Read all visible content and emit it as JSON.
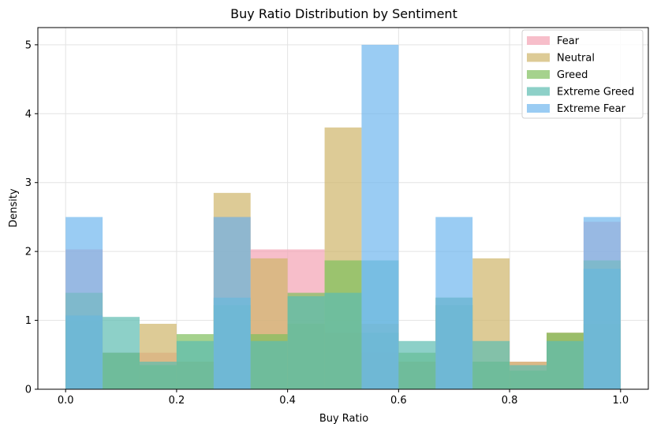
{
  "chart_data": {
    "type": "bar",
    "subtype": "histogram-density-overlay",
    "title": "Buy Ratio Distribution by Sentiment",
    "xlabel": "Buy Ratio",
    "ylabel": "Density",
    "xlim": [
      -0.05,
      1.05
    ],
    "ylim": [
      0,
      5.25
    ],
    "xticks": [
      0.0,
      0.2,
      0.4,
      0.6,
      0.8,
      1.0
    ],
    "xtick_labels": [
      "0.0",
      "0.2",
      "0.4",
      "0.6",
      "0.8",
      "1.0"
    ],
    "yticks": [
      0,
      1,
      2,
      3,
      4,
      5
    ],
    "ytick_labels": [
      "0",
      "1",
      "2",
      "3",
      "4",
      "5"
    ],
    "grid": true,
    "legend_position": "top-right",
    "bin_edges": [
      0.0,
      0.0667,
      0.1333,
      0.2,
      0.2667,
      0.3333,
      0.4,
      0.4667,
      0.5333,
      0.6,
      0.6667,
      0.7333,
      0.8,
      0.8667,
      0.9333,
      1.0
    ],
    "series": [
      {
        "name": "Fear",
        "color": "#f4a3b4",
        "values": [
          2.03,
          0.53,
          0.53,
          0.4,
          2.5,
          2.03,
          2.03,
          0.82,
          0.53,
          0.4,
          1.22,
          0.4,
          0.4,
          0.82,
          2.43
        ]
      },
      {
        "name": "Neutral",
        "color": "#cfb56a",
        "values": [
          1.0,
          0.53,
          0.95,
          0.4,
          2.85,
          1.9,
          0.95,
          3.8,
          0.95,
          0.4,
          1.33,
          1.9,
          0.4,
          0.82,
          0.95
        ]
      },
      {
        "name": "Greed",
        "color": "#7fbf5c",
        "values": [
          1.4,
          0.53,
          0.35,
          0.8,
          1.22,
          0.8,
          1.4,
          1.87,
          0.82,
          0.53,
          1.22,
          0.4,
          0.27,
          0.82,
          1.87
        ]
      },
      {
        "name": "Extreme Greed",
        "color": "#5cbcb0",
        "values": [
          1.07,
          1.05,
          0.4,
          0.7,
          1.33,
          0.7,
          1.35,
          1.4,
          1.87,
          0.7,
          1.33,
          0.7,
          0.35,
          0.7,
          1.75
        ]
      },
      {
        "name": "Extreme Fear",
        "color": "#6fb6ee",
        "values": [
          2.5,
          0.0,
          0.0,
          0.0,
          2.5,
          0.0,
          0.0,
          0.0,
          5.0,
          0.0,
          2.5,
          0.0,
          0.0,
          0.0,
          2.5
        ]
      }
    ]
  }
}
